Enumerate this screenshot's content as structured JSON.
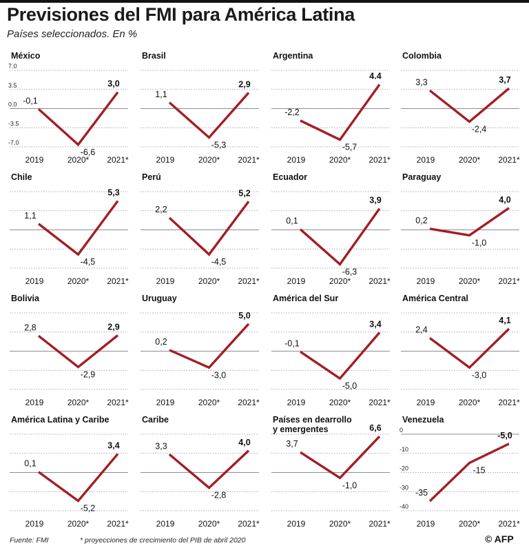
{
  "header": {
    "title": "Previsiones del FMI para América Latina",
    "subtitle": "Países seleccionados. En %"
  },
  "footer": {
    "source": "Fuente: FMI",
    "note": "* proyecciones de crecimiento del PIB de abril 2020",
    "logo": "© AFP"
  },
  "colors": {
    "line": "#a31d24",
    "grid": "#8c8c8c",
    "text": "#1a1a1a"
  },
  "chart_data": [
    {
      "type": "line",
      "title": "México",
      "categories": [
        "2019",
        "2020*",
        "2021*"
      ],
      "values": [
        -0.1,
        -6.6,
        3.0
      ],
      "labels": [
        "-0,1",
        "-6,6",
        "3,0"
      ],
      "yticks": [
        "7.0",
        "3.5",
        "0.0",
        "-3.5",
        "-7.0"
      ],
      "ylim": [
        -7,
        7
      ]
    },
    {
      "type": "line",
      "title": "Brasil",
      "categories": [
        "2019",
        "2020*",
        "2021*"
      ],
      "values": [
        1.1,
        -5.3,
        2.9
      ],
      "labels": [
        "1,1",
        "-5,3",
        "2,9"
      ],
      "ylim": [
        -7,
        7
      ]
    },
    {
      "type": "line",
      "title": "Argentina",
      "categories": [
        "2019",
        "2020*",
        "2021*"
      ],
      "values": [
        -2.2,
        -5.7,
        4.4
      ],
      "labels": [
        "-2,2",
        "-5,7",
        "4.4"
      ],
      "ylim": [
        -7,
        7
      ]
    },
    {
      "type": "line",
      "title": "Colombia",
      "categories": [
        "2019",
        "2020*",
        "2021*"
      ],
      "values": [
        3.3,
        -2.4,
        3.7
      ],
      "labels": [
        "3,3",
        "-2,4",
        "3,7"
      ],
      "ylim": [
        -7,
        7
      ]
    },
    {
      "type": "line",
      "title": "Chile",
      "categories": [
        "2019",
        "2020*",
        "2021*"
      ],
      "values": [
        1.1,
        -4.5,
        5.3
      ],
      "labels": [
        "1,1",
        "-4,5",
        "5,3"
      ],
      "ylim": [
        -7,
        7
      ]
    },
    {
      "type": "line",
      "title": "Perú",
      "categories": [
        "2019",
        "2020*",
        "2021*"
      ],
      "values": [
        2.2,
        -4.5,
        5.2
      ],
      "labels": [
        "2,2",
        "-4,5",
        "5,2"
      ],
      "ylim": [
        -7,
        7
      ]
    },
    {
      "type": "line",
      "title": "Ecuador",
      "categories": [
        "2019",
        "2020*",
        "2021*"
      ],
      "values": [
        0.1,
        -6.3,
        3.9
      ],
      "labels": [
        "0,1",
        "-6,3",
        "3,9"
      ],
      "ylim": [
        -7,
        7
      ]
    },
    {
      "type": "line",
      "title": "Paraguay",
      "categories": [
        "2019",
        "2020*",
        "2021*"
      ],
      "values": [
        0.2,
        -1.0,
        4.0
      ],
      "labels": [
        "0,2",
        "-1,0",
        "4,0"
      ],
      "ylim": [
        -7,
        7
      ]
    },
    {
      "type": "line",
      "title": "Bolivia",
      "categories": [
        "2019",
        "2020*",
        "2021*"
      ],
      "values": [
        2.8,
        -2.9,
        2.9
      ],
      "labels": [
        "2,8",
        "-2,9",
        "2,9"
      ],
      "ylim": [
        -7,
        7
      ]
    },
    {
      "type": "line",
      "title": "Uruguay",
      "categories": [
        "2019",
        "2020*",
        "2021*"
      ],
      "values": [
        0.2,
        -3.0,
        5.0
      ],
      "labels": [
        "0,2",
        "-3,0",
        "5,0"
      ],
      "ylim": [
        -7,
        7
      ]
    },
    {
      "type": "line",
      "title": "América del Sur",
      "categories": [
        "2019",
        "2020*",
        "2021*"
      ],
      "values": [
        -0.1,
        -5.0,
        3.4
      ],
      "labels": [
        "-0,1",
        "-5,0",
        "3,4"
      ],
      "ylim": [
        -7,
        7
      ]
    },
    {
      "type": "line",
      "title": "América Central",
      "categories": [
        "2019",
        "2020*",
        "2021*"
      ],
      "values": [
        2.4,
        -3.0,
        4.1
      ],
      "labels": [
        "2,4",
        "-3,0",
        "4,1"
      ],
      "ylim": [
        -7,
        7
      ]
    },
    {
      "type": "line",
      "title": "América Latina y Caribe",
      "categories": [
        "2019",
        "2020*",
        "2021*"
      ],
      "values": [
        0.1,
        -5.2,
        3.4
      ],
      "labels": [
        "0,1",
        "-5,2",
        "3,4"
      ],
      "ylim": [
        -7,
        7
      ]
    },
    {
      "type": "line",
      "title": "Caribe",
      "categories": [
        "2019",
        "2020*",
        "2021*"
      ],
      "values": [
        3.3,
        -2.8,
        4.0
      ],
      "labels": [
        "3,3",
        "-2,8",
        "4,0"
      ],
      "ylim": [
        -7,
        7
      ]
    },
    {
      "type": "line",
      "title": "Países en dearrollo y emergentes",
      "title_lines": [
        "Países en dearrollo",
        "y emergentes"
      ],
      "categories": [
        "2019",
        "2020*",
        "2021*"
      ],
      "values": [
        3.7,
        -1.0,
        6.6
      ],
      "labels": [
        "3,7",
        "-1,0",
        "6,6"
      ],
      "ylim": [
        -7,
        7
      ]
    },
    {
      "type": "line",
      "title": "Venezuela",
      "categories": [
        "2019",
        "2020*",
        "2021*"
      ],
      "values": [
        -35,
        -15,
        -5.0
      ],
      "labels": [
        "-35",
        "-15",
        "-5,0"
      ],
      "yticks": [
        "0",
        "-10",
        "-20",
        "-30",
        "-40"
      ],
      "ylim": [
        -40,
        0
      ]
    }
  ]
}
